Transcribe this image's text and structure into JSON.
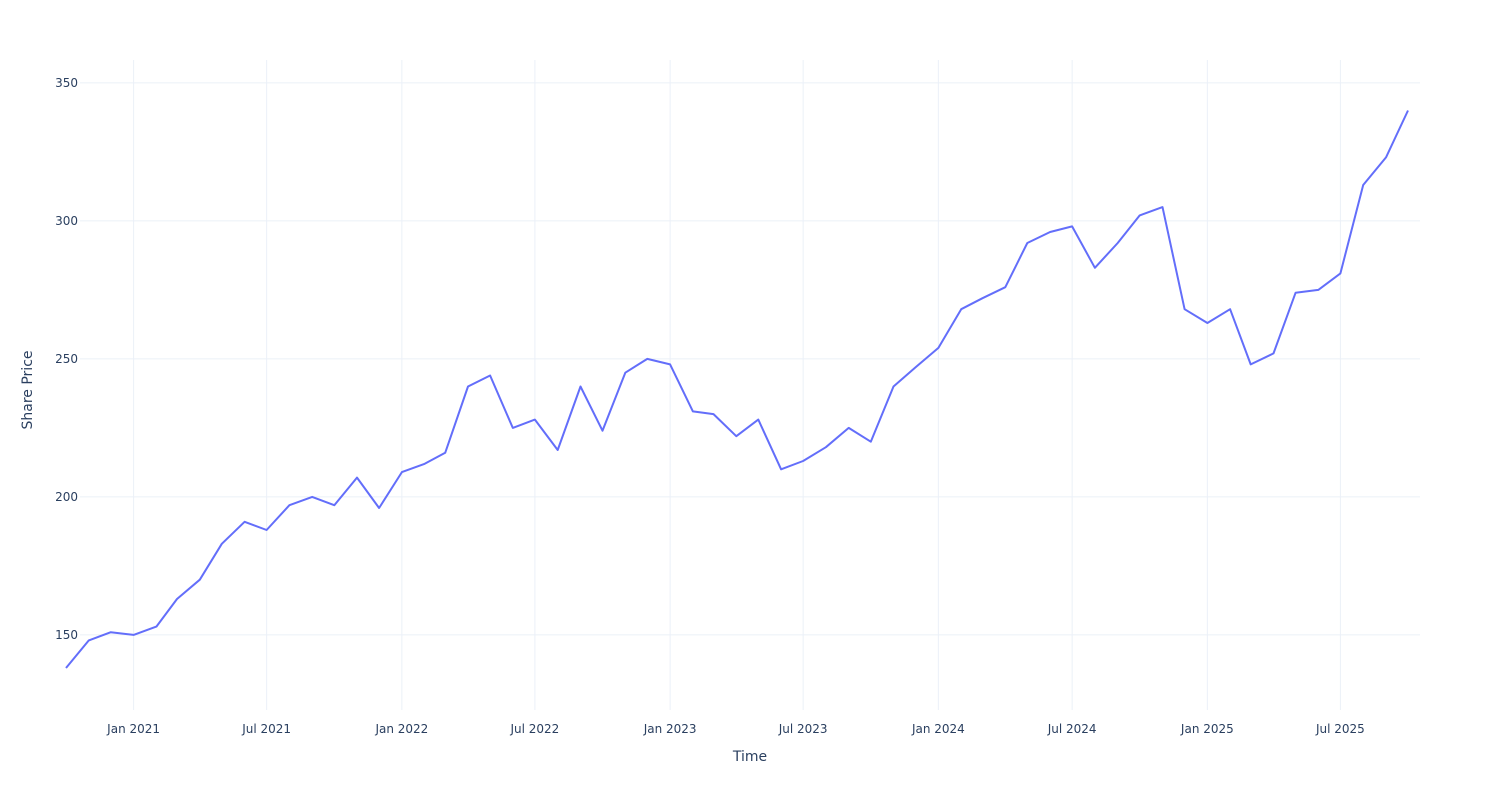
{
  "chart_data": {
    "type": "line",
    "x_label": "Time",
    "y_label": "Share Price",
    "x": [
      "2020-10",
      "2020-11",
      "2020-12",
      "2021-01",
      "2021-02",
      "2021-03",
      "2021-04",
      "2021-05",
      "2021-06",
      "2021-07",
      "2021-08",
      "2021-09",
      "2021-10",
      "2021-11",
      "2021-12",
      "2022-01",
      "2022-02",
      "2022-03",
      "2022-04",
      "2022-05",
      "2022-06",
      "2022-07",
      "2022-08",
      "2022-09",
      "2022-10",
      "2022-11",
      "2022-12",
      "2023-01",
      "2023-02",
      "2023-03",
      "2023-04",
      "2023-05",
      "2023-06",
      "2023-07",
      "2023-08",
      "2023-09",
      "2023-10",
      "2023-11",
      "2023-12",
      "2024-01",
      "2024-02",
      "2024-03",
      "2024-04",
      "2024-05",
      "2024-06",
      "2024-07",
      "2024-08",
      "2024-09",
      "2024-10",
      "2024-11",
      "2024-12",
      "2025-01",
      "2025-02",
      "2025-03",
      "2025-04",
      "2025-05",
      "2025-06",
      "2025-07",
      "2025-08",
      "2025-09",
      "2025-10"
    ],
    "values": [
      138,
      148,
      151,
      150,
      153,
      163,
      170,
      183,
      191,
      188,
      197,
      200,
      197,
      207,
      196,
      209,
      212,
      216,
      240,
      244,
      225,
      228,
      217,
      240,
      224,
      245,
      250,
      248,
      231,
      230,
      222,
      228,
      210,
      213,
      218,
      225,
      220,
      240,
      247,
      254,
      268,
      272,
      276,
      292,
      296,
      298,
      283,
      292,
      302,
      305,
      268,
      263,
      268,
      248,
      252,
      274,
      275,
      281,
      313,
      323,
      340
    ],
    "color": "#636efa",
    "xlim": [
      "2020-10",
      "2025-10"
    ],
    "xticks": [
      {
        "value": "2021-01",
        "label": "Jan 2021"
      },
      {
        "value": "2021-07",
        "label": "Jul 2021"
      },
      {
        "value": "2022-01",
        "label": "Jan 2022"
      },
      {
        "value": "2022-07",
        "label": "Jul 2022"
      },
      {
        "value": "2023-01",
        "label": "Jan 2023"
      },
      {
        "value": "2023-07",
        "label": "Jul 2023"
      },
      {
        "value": "2024-01",
        "label": "Jan 2024"
      },
      {
        "value": "2024-07",
        "label": "Jul 2024"
      },
      {
        "value": "2025-01",
        "label": "Jan 2025"
      },
      {
        "value": "2025-07",
        "label": "Jul 2025"
      }
    ],
    "ylim": [
      122.8,
      358.3
    ],
    "yticks": [
      150,
      200,
      250,
      300,
      350
    ],
    "grid": true
  }
}
